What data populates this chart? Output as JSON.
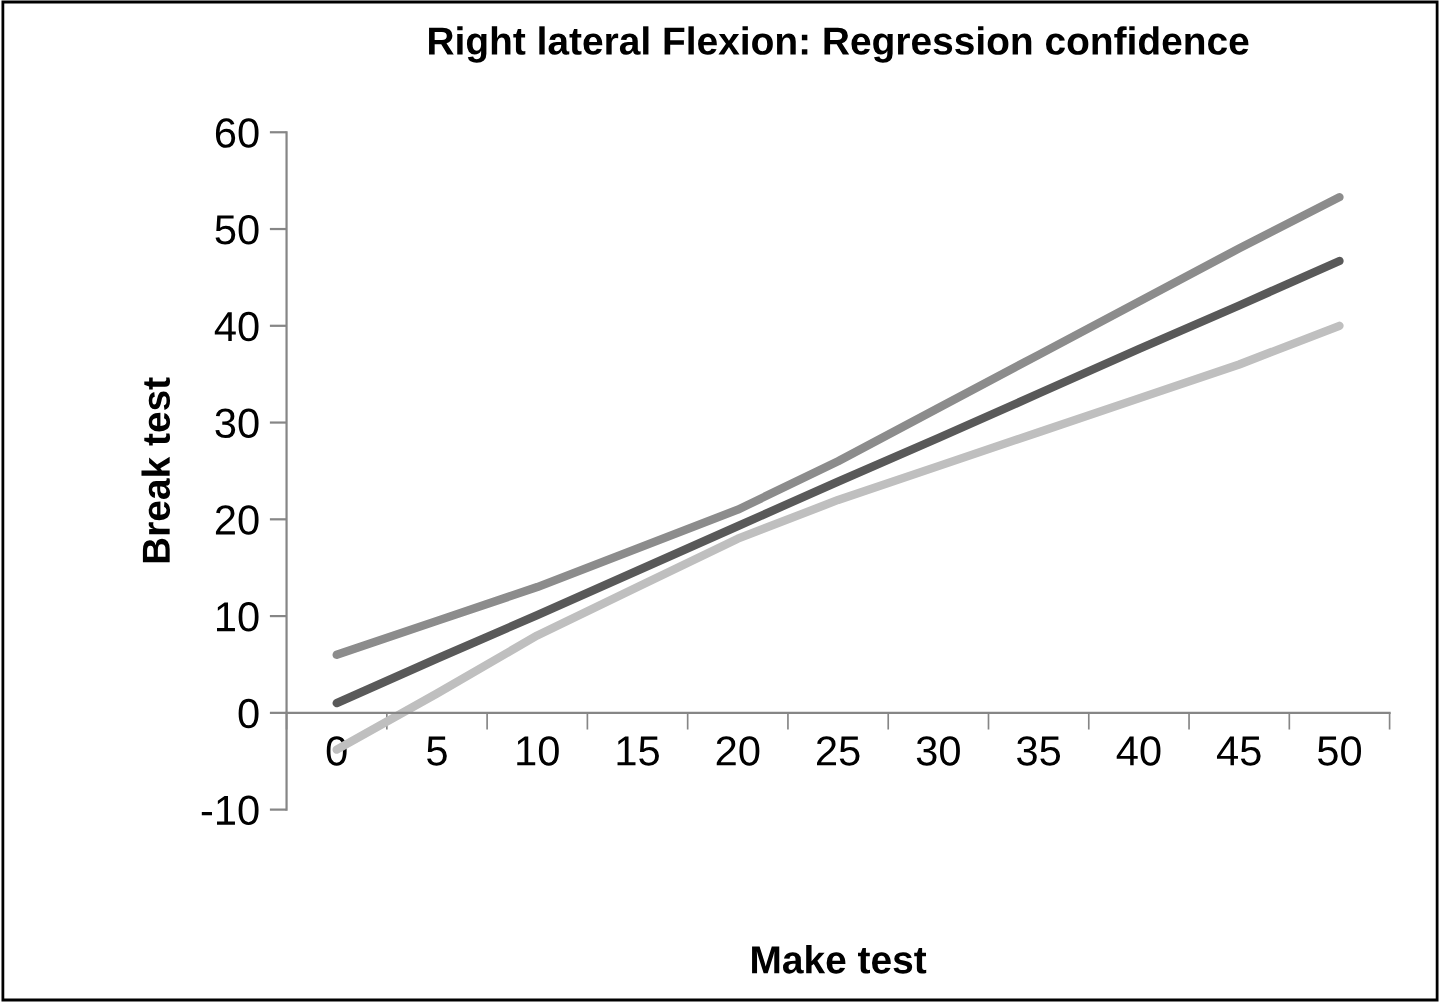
{
  "chart_data": {
    "type": "line",
    "title": "Right lateral Flexion: Regression confidence",
    "xlabel": "Make test",
    "ylabel": "Break test",
    "categories": [
      "0",
      "5",
      "10",
      "15",
      "20",
      "25",
      "30",
      "35",
      "40",
      "45",
      "50"
    ],
    "series": [
      {
        "color": "#8c8c8c",
        "values": [
          6,
          9.5,
          13,
          17,
          21,
          26,
          31.5,
          37,
          42.5,
          48,
          53.3
        ]
      },
      {
        "color": "#595959",
        "values": [
          1,
          5.6,
          10.1,
          14.7,
          19.3,
          23.9,
          28.4,
          33,
          37.6,
          42.1,
          46.7
        ]
      },
      {
        "color": "#bfbfbf",
        "values": [
          -3.8,
          2,
          8,
          13,
          18,
          22,
          25.5,
          29,
          32.5,
          36,
          40
        ]
      }
    ],
    "ylim": [
      -10,
      60
    ],
    "yticks": [
      -10,
      0,
      10,
      20,
      30,
      40,
      50,
      60
    ],
    "marker": "none",
    "line_style": "solid"
  }
}
